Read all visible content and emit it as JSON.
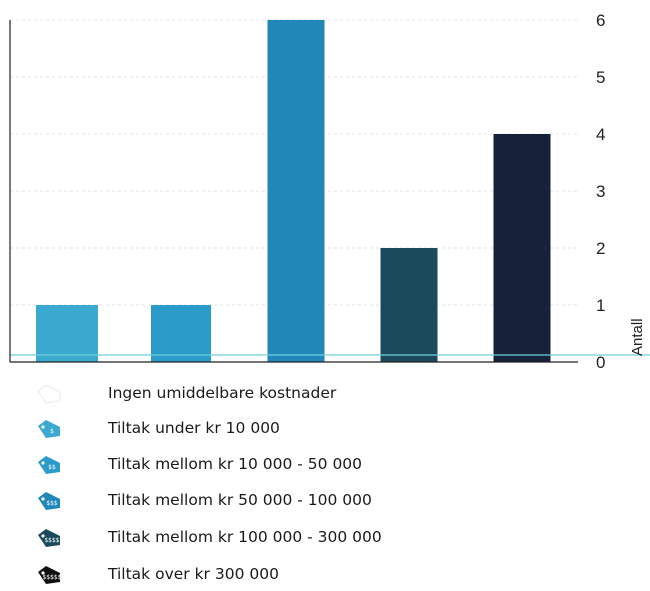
{
  "chart_data": {
    "type": "bar",
    "categories": [
      "Ingen umiddelbare kostnader",
      "Tiltak under kr 10 000",
      "Tiltak mellom kr 10 000 - 50 000",
      "Tiltak mellom kr 50 000 - 100 000",
      "Tiltak mellom kr 100 000 - 300 000",
      "Tiltak over kr  300 000"
    ],
    "values": [
      0,
      1,
      1,
      6,
      2,
      4
    ],
    "colors": [
      "#d8dde2",
      "#3aaad0",
      "#2b9bca",
      "#2186b8",
      "#1b4a5c",
      "#16213a"
    ],
    "ylabel": "Antall",
    "ylim": [
      0,
      6
    ],
    "yticks": [
      "0",
      "1",
      "2",
      "3",
      "4",
      "5",
      "6"
    ],
    "axis_position": "right",
    "grid": true,
    "legend_position": "bottom"
  },
  "legend": {
    "items": [
      {
        "label": "Ingen umiddelbare kostnader",
        "icon": "blank-price-tag-icon",
        "color": "#e3e7ea"
      },
      {
        "label": "Tiltak under kr 10 000",
        "icon": "price-tag-1-dollar-icon",
        "color": "#3aaad0"
      },
      {
        "label": "Tiltak mellom kr 10 000 - 50 000",
        "icon": "price-tag-2-dollar-icon",
        "color": "#2b9bca"
      },
      {
        "label": "Tiltak mellom kr 50 000 - 100 000",
        "icon": "price-tag-3-dollar-icon",
        "color": "#2186b8"
      },
      {
        "label": "Tiltak mellom kr 100 000 - 300 000",
        "icon": "price-tag-4-dollar-icon",
        "color": "#1b4a5c"
      },
      {
        "label": "Tiltak over kr  300 000",
        "icon": "price-tag-5-dollar-icon",
        "color": "#111111"
      }
    ]
  }
}
